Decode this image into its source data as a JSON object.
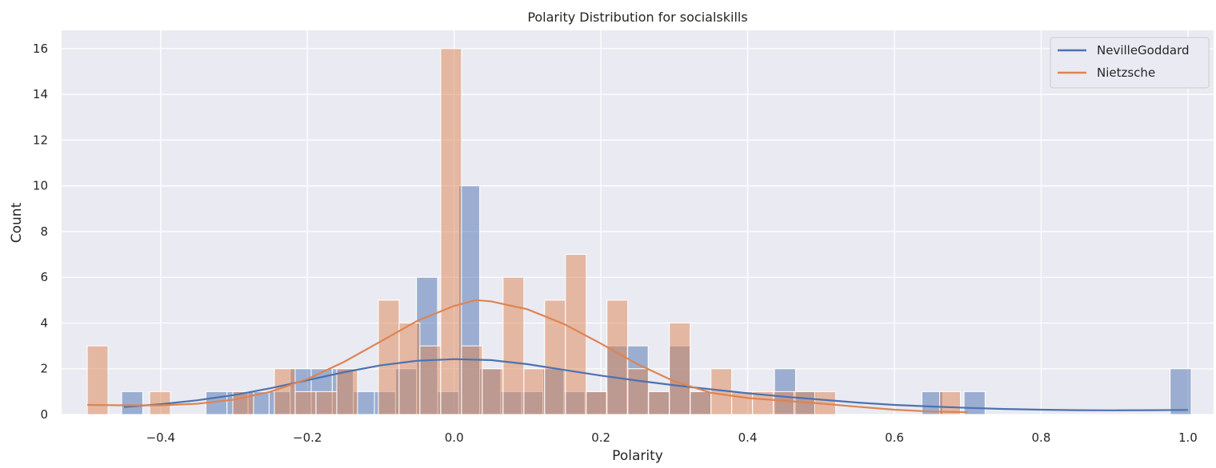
{
  "chart_data": {
    "type": "histogram",
    "title": "Polarity Distribution for socialskills",
    "xlabel": "Polarity",
    "ylabel": "Count",
    "xlim": [
      -0.535,
      1.035
    ],
    "ylim": [
      0,
      16.8
    ],
    "xticks": [
      -0.4,
      -0.2,
      0.0,
      0.2,
      0.4,
      0.6,
      0.8,
      1.0
    ],
    "xtick_labels": [
      "−0.4",
      "−0.2",
      "0.0",
      "0.2",
      "0.4",
      "0.6",
      "0.8",
      "1.0"
    ],
    "yticks": [
      0,
      2,
      4,
      6,
      8,
      10,
      12,
      14,
      16
    ],
    "ytick_labels": [
      "0",
      "2",
      "4",
      "6",
      "8",
      "10",
      "12",
      "14",
      "16"
    ],
    "grid": true,
    "legend_position": "top-right",
    "series": [
      {
        "name": "NevilleGoddard",
        "color": "#4c72b0",
        "bin_width": 0.0287,
        "bins": [
          {
            "x0": -0.4531,
            "count": 1
          },
          {
            "x0": -0.3383,
            "count": 1
          },
          {
            "x0": -0.3096,
            "count": 1
          },
          {
            "x0": -0.2809,
            "count": 1
          },
          {
            "x0": -0.2522,
            "count": 1
          },
          {
            "x0": -0.2235,
            "count": 2
          },
          {
            "x0": -0.1948,
            "count": 2
          },
          {
            "x0": -0.1661,
            "count": 2
          },
          {
            "x0": -0.1374,
            "count": 1
          },
          {
            "x0": -0.1087,
            "count": 1
          },
          {
            "x0": -0.08,
            "count": 2
          },
          {
            "x0": -0.0513,
            "count": 6
          },
          {
            "x0": -0.0226,
            "count": 1
          },
          {
            "x0": 0.0061,
            "count": 10
          },
          {
            "x0": 0.0348,
            "count": 2
          },
          {
            "x0": 0.0635,
            "count": 1
          },
          {
            "x0": 0.0922,
            "count": 1
          },
          {
            "x0": 0.1209,
            "count": 2
          },
          {
            "x0": 0.1496,
            "count": 1
          },
          {
            "x0": 0.1783,
            "count": 1
          },
          {
            "x0": 0.207,
            "count": 3
          },
          {
            "x0": 0.2357,
            "count": 3
          },
          {
            "x0": 0.2644,
            "count": 1
          },
          {
            "x0": 0.2931,
            "count": 3
          },
          {
            "x0": 0.3218,
            "count": 1
          },
          {
            "x0": 0.4366,
            "count": 2
          },
          {
            "x0": 0.4653,
            "count": 1
          },
          {
            "x0": 0.6375,
            "count": 1
          },
          {
            "x0": 0.6949,
            "count": 1
          },
          {
            "x0": 0.9758,
            "count": 2
          }
        ],
        "kde": [
          [
            -0.45,
            0.33
          ],
          [
            -0.4,
            0.45
          ],
          [
            -0.35,
            0.62
          ],
          [
            -0.3,
            0.85
          ],
          [
            -0.25,
            1.15
          ],
          [
            -0.2,
            1.5
          ],
          [
            -0.15,
            1.85
          ],
          [
            -0.1,
            2.15
          ],
          [
            -0.05,
            2.35
          ],
          [
            0.0,
            2.42
          ],
          [
            0.05,
            2.38
          ],
          [
            0.1,
            2.2
          ],
          [
            0.15,
            1.95
          ],
          [
            0.2,
            1.7
          ],
          [
            0.25,
            1.48
          ],
          [
            0.3,
            1.28
          ],
          [
            0.35,
            1.1
          ],
          [
            0.4,
            0.93
          ],
          [
            0.45,
            0.78
          ],
          [
            0.5,
            0.65
          ],
          [
            0.55,
            0.52
          ],
          [
            0.6,
            0.42
          ],
          [
            0.65,
            0.35
          ],
          [
            0.7,
            0.29
          ],
          [
            0.75,
            0.24
          ],
          [
            0.8,
            0.21
          ],
          [
            0.85,
            0.19
          ],
          [
            0.9,
            0.18
          ],
          [
            0.95,
            0.19
          ],
          [
            1.0,
            0.2
          ]
        ]
      },
      {
        "name": "Nietzsche",
        "color": "#dd8452",
        "bin_width": 0.0283,
        "bins": [
          {
            "x0": -0.5,
            "count": 3
          },
          {
            "x0": -0.415,
            "count": 1
          },
          {
            "x0": -0.3017,
            "count": 1
          },
          {
            "x0": -0.245,
            "count": 2
          },
          {
            "x0": -0.2167,
            "count": 1
          },
          {
            "x0": -0.1883,
            "count": 1
          },
          {
            "x0": -0.16,
            "count": 2
          },
          {
            "x0": -0.1033,
            "count": 5
          },
          {
            "x0": -0.075,
            "count": 4
          },
          {
            "x0": -0.0467,
            "count": 3
          },
          {
            "x0": -0.0183,
            "count": 16
          },
          {
            "x0": 0.01,
            "count": 3
          },
          {
            "x0": 0.0383,
            "count": 2
          },
          {
            "x0": 0.0667,
            "count": 6
          },
          {
            "x0": 0.095,
            "count": 2
          },
          {
            "x0": 0.1233,
            "count": 5
          },
          {
            "x0": 0.1517,
            "count": 7
          },
          {
            "x0": 0.18,
            "count": 1
          },
          {
            "x0": 0.2083,
            "count": 5
          },
          {
            "x0": 0.2367,
            "count": 2
          },
          {
            "x0": 0.265,
            "count": 1
          },
          {
            "x0": 0.2933,
            "count": 4
          },
          {
            "x0": 0.3217,
            "count": 1
          },
          {
            "x0": 0.35,
            "count": 2
          },
          {
            "x0": 0.3783,
            "count": 1
          },
          {
            "x0": 0.4067,
            "count": 1
          },
          {
            "x0": 0.435,
            "count": 1
          },
          {
            "x0": 0.4633,
            "count": 1
          },
          {
            "x0": 0.4917,
            "count": 1
          },
          {
            "x0": 0.6617,
            "count": 1
          }
        ],
        "kde": [
          [
            -0.5,
            0.42
          ],
          [
            -0.45,
            0.4
          ],
          [
            -0.4,
            0.4
          ],
          [
            -0.35,
            0.47
          ],
          [
            -0.3,
            0.65
          ],
          [
            -0.25,
            1.0
          ],
          [
            -0.2,
            1.55
          ],
          [
            -0.15,
            2.3
          ],
          [
            -0.1,
            3.2
          ],
          [
            -0.05,
            4.1
          ],
          [
            0.0,
            4.75
          ],
          [
            0.03,
            5.0
          ],
          [
            0.05,
            4.95
          ],
          [
            0.1,
            4.6
          ],
          [
            0.15,
            3.95
          ],
          [
            0.2,
            3.1
          ],
          [
            0.25,
            2.2
          ],
          [
            0.3,
            1.45
          ],
          [
            0.35,
            0.95
          ],
          [
            0.4,
            0.72
          ],
          [
            0.45,
            0.6
          ],
          [
            0.5,
            0.48
          ],
          [
            0.55,
            0.34
          ],
          [
            0.6,
            0.21
          ],
          [
            0.65,
            0.13
          ],
          [
            0.7,
            0.1
          ]
        ]
      }
    ]
  }
}
